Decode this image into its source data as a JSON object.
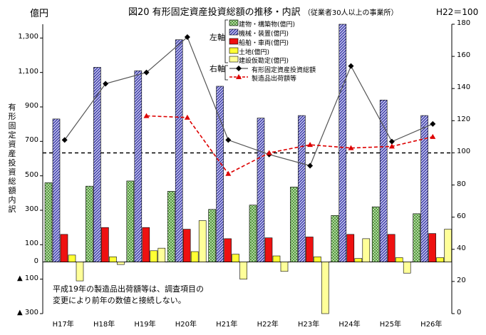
{
  "title": "図20 有形固定資産投資総額の推移・内訳",
  "subtitle": "（従業者30人以上の事業所）",
  "ylabel_left": "億円",
  "ylabel_right": "H22＝100",
  "vertical_label": "有形固定資産投資総額内訳",
  "note_line1": "平成19年の製造品出荷額等は、調査項目の",
  "note_line2": "変更により前年の数値と接続しない。",
  "legend_group_left": "左軸",
  "legend_group_right": "右軸",
  "colors": {
    "building": "#7fbf5f",
    "machinery": "#4a4ab8",
    "ship": "#ee1111",
    "land": "#ffff33",
    "construction": "#ffff99",
    "investment_line": "#555555",
    "shipment_line": "#dd0000"
  },
  "chart_data": {
    "type": "bar",
    "categories": [
      "H17年",
      "H18年",
      "H19年",
      "H20年",
      "H21年",
      "H22年",
      "H23年",
      "H24年",
      "H25年",
      "H26年"
    ],
    "y_left": {
      "ylim": [
        -300,
        1380
      ],
      "ticks": [
        -300,
        -100,
        100,
        300,
        500,
        700,
        900,
        1100,
        1300
      ],
      "tick_labels": [
        "▲ 300",
        "▲ 100",
        "100",
        "300",
        "500",
        "700",
        "900",
        "1,100",
        "1,300"
      ]
    },
    "y_right": {
      "ylim": [
        0,
        180
      ],
      "ticks": [
        0,
        20,
        40,
        60,
        80,
        100,
        120,
        140,
        160,
        180
      ]
    },
    "bar_series": [
      {
        "name": "建物・構築物(億円)",
        "values": [
          460,
          440,
          470,
          410,
          305,
          330,
          435,
          270,
          320,
          280
        ]
      },
      {
        "name": "機械・装置(億円)",
        "values": [
          830,
          1130,
          1110,
          1290,
          1020,
          835,
          850,
          1380,
          940,
          850
        ]
      },
      {
        "name": "船舶・車両(億円)",
        "values": [
          160,
          200,
          200,
          190,
          135,
          140,
          145,
          160,
          160,
          165
        ]
      },
      {
        "name": "土地(億円)",
        "values": [
          40,
          30,
          65,
          60,
          45,
          35,
          30,
          20,
          25,
          25
        ]
      },
      {
        "name": "建設仮勘定(億円)",
        "values": [
          -110,
          -15,
          80,
          240,
          -100,
          -55,
          -300,
          135,
          -65,
          190
        ]
      }
    ],
    "line_series": [
      {
        "name": "有形固定資産投資総額",
        "axis": "right",
        "values": [
          108,
          143,
          150,
          172,
          108,
          99,
          92,
          154,
          107,
          118
        ]
      },
      {
        "name": "製造品出荷額等",
        "axis": "right",
        "values": [
          null,
          null,
          123,
          122,
          87,
          100,
          105,
          103,
          104,
          110
        ]
      }
    ],
    "reference_line": {
      "axis": "right",
      "value": 100,
      "style": "dashed"
    }
  }
}
